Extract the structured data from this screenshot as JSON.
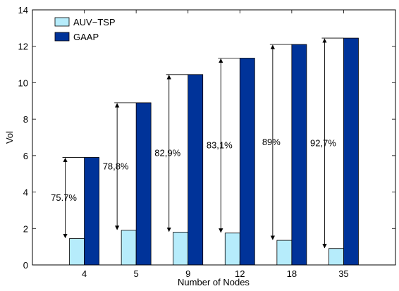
{
  "chart_data": {
    "type": "bar",
    "title": "",
    "xlabel": "Number of Nodes",
    "ylabel": "Vol",
    "categories": [
      "4",
      "5",
      "9",
      "12",
      "18",
      "35"
    ],
    "ylim": [
      0,
      14
    ],
    "yticks": [
      "0",
      "2",
      "4",
      "6",
      "8",
      "10",
      "12",
      "14"
    ],
    "grid": false,
    "legend_position": "top-left",
    "series": [
      {
        "name": "AUV−TSP",
        "color": "#b6ecfb",
        "values": [
          1.45,
          1.9,
          1.8,
          1.75,
          1.35,
          0.9
        ]
      },
      {
        "name": "GAAP",
        "color": "#003399",
        "values": [
          5.9,
          8.9,
          10.45,
          11.35,
          12.1,
          12.45
        ]
      }
    ],
    "annotations": [
      "75.7%",
      "78,8%",
      "82,9%",
      "83,1%",
      "89%",
      "92,7%"
    ]
  }
}
